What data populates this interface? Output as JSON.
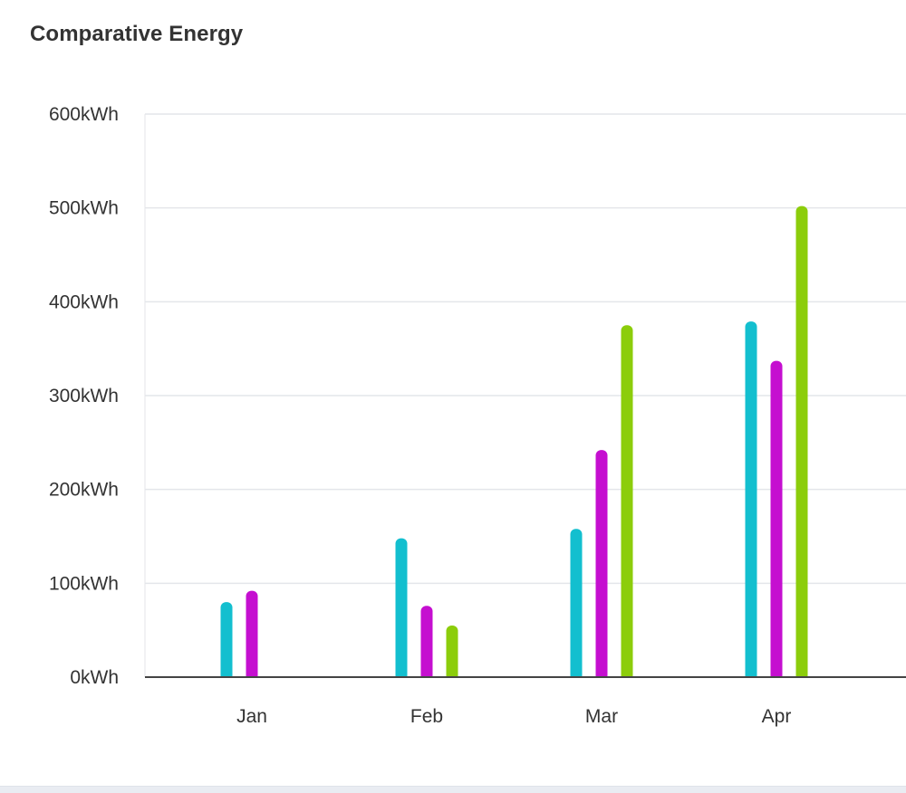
{
  "card": {
    "title": "Comparative Energy"
  },
  "chart_data": {
    "type": "bar",
    "title": "Comparative Energy",
    "categories": [
      "Jan",
      "Feb",
      "Mar",
      "Apr"
    ],
    "series": [
      {
        "color": "#13bfcf",
        "values": [
          80,
          148,
          158,
          379
        ]
      },
      {
        "color": "#c50fd0",
        "values": [
          92,
          76,
          242,
          337
        ]
      },
      {
        "color": "#8ccd0b",
        "values": [
          null,
          55,
          375,
          502
        ]
      }
    ],
    "ylim": [
      0,
      600
    ],
    "yticks": [
      0,
      100,
      200,
      300,
      400,
      500,
      600
    ],
    "ytick_unit": "kWh",
    "grid": true,
    "legend": "none"
  }
}
